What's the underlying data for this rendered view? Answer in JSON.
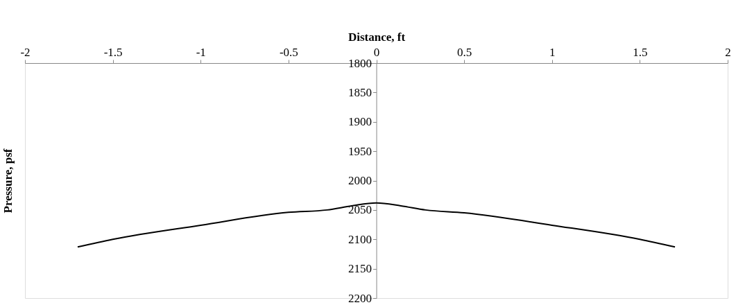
{
  "chart_data": {
    "type": "line",
    "xlabel": "Distance, ft",
    "ylabel": "Pressure, psf",
    "x": [
      -1.7,
      -1.5,
      -1.0,
      -0.5,
      -0.28,
      -0.14,
      0,
      0.14,
      0.28,
      0.5,
      1.0,
      1.5,
      1.7
    ],
    "series": [
      {
        "color": "#000000",
        "values": [
          2113,
          2100,
          2076,
          2054,
          2050,
          2043,
          2038,
          2043,
          2050,
          2055,
          2076,
          2100,
          2113
        ]
      }
    ],
    "xlim": [
      -2,
      2
    ],
    "xticks": [
      -2,
      -1.5,
      -1,
      -0.5,
      0,
      0.5,
      1,
      1.5,
      2
    ],
    "ylim": [
      2200,
      1800
    ],
    "yticks": [
      1800,
      1850,
      1900,
      1950,
      2000,
      2050,
      2100,
      2150,
      2200
    ],
    "grid": false,
    "marker": "none",
    "line_style": "solid"
  }
}
